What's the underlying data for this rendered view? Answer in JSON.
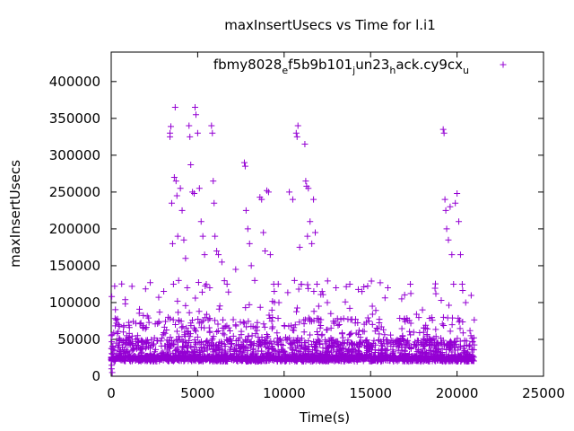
{
  "chart_data": {
    "type": "scatter",
    "title": "maxInsertUsecs vs Time for l.i1",
    "xlabel": "Time(s)",
    "ylabel": "maxInsertUsecs",
    "xlim": [
      0,
      25000
    ],
    "ylim": [
      0,
      440000
    ],
    "xticks": [
      0,
      5000,
      10000,
      15000,
      20000,
      25000
    ],
    "yticks": [
      0,
      50000,
      100000,
      150000,
      200000,
      250000,
      300000,
      350000,
      400000
    ],
    "grid": false,
    "legend_position": "top-right",
    "marker": "plus",
    "series": [
      {
        "name": "fbmy8028_ef5b9b101_jun23_hack.cy9cx_u",
        "name_segments": [
          {
            "text": "fbmy8028",
            "sub": false
          },
          {
            "text": "e",
            "sub": true
          },
          {
            "text": "f5b9b101",
            "sub": false
          },
          {
            "text": "j",
            "sub": true
          },
          {
            "text": "un23",
            "sub": false
          },
          {
            "text": "h",
            "sub": true
          },
          {
            "text": "ack.cy9cx",
            "sub": false
          },
          {
            "text": "u",
            "sub": true
          }
        ],
        "color": "#9400d3",
        "points": [
          [
            20,
            10000
          ],
          [
            30,
            15000
          ],
          [
            50,
            22000
          ],
          [
            60,
            5000
          ],
          [
            80,
            30000
          ],
          [
            100,
            40000
          ],
          [
            150,
            25000
          ],
          [
            200,
            35000
          ],
          [
            300,
            45000
          ],
          [
            500,
            50000
          ],
          [
            700,
            60000
          ],
          [
            900,
            55000
          ],
          [
            1200,
            122000
          ],
          [
            1500,
            42000
          ],
          [
            2000,
            38000
          ],
          [
            2500,
            52000
          ],
          [
            2800,
            87000
          ],
          [
            3400,
            330000
          ],
          [
            3400,
            325000
          ],
          [
            3450,
            339000
          ],
          [
            3500,
            235000
          ],
          [
            3550,
            180000
          ],
          [
            3600,
            125000
          ],
          [
            3650,
            270000
          ],
          [
            3700,
            365000
          ],
          [
            3750,
            265000
          ],
          [
            3800,
            245000
          ],
          [
            3850,
            190000
          ],
          [
            3900,
            130000
          ],
          [
            4000,
            255000
          ],
          [
            4100,
            225000
          ],
          [
            4200,
            185000
          ],
          [
            4300,
            160000
          ],
          [
            4400,
            120000
          ],
          [
            4500,
            340000
          ],
          [
            4550,
            325000
          ],
          [
            4600,
            287000
          ],
          [
            4700,
            250000
          ],
          [
            4800,
            248000
          ],
          [
            4850,
            365000
          ],
          [
            4900,
            355000
          ],
          [
            5000,
            330000
          ],
          [
            5100,
            255000
          ],
          [
            5200,
            210000
          ],
          [
            5300,
            190000
          ],
          [
            5400,
            165000
          ],
          [
            5500,
            125000
          ],
          [
            5700,
            120000
          ],
          [
            5800,
            340000
          ],
          [
            5850,
            330000
          ],
          [
            5900,
            265000
          ],
          [
            5950,
            235000
          ],
          [
            6000,
            190000
          ],
          [
            6100,
            170000
          ],
          [
            6200,
            165000
          ],
          [
            6400,
            155000
          ],
          [
            6700,
            125000
          ],
          [
            7200,
            145000
          ],
          [
            7700,
            290000
          ],
          [
            7750,
            285000
          ],
          [
            7800,
            225000
          ],
          [
            7900,
            200000
          ],
          [
            8000,
            180000
          ],
          [
            8100,
            150000
          ],
          [
            8300,
            130000
          ],
          [
            8600,
            243000
          ],
          [
            8700,
            240000
          ],
          [
            8800,
            195000
          ],
          [
            8900,
            170000
          ],
          [
            9000,
            252000
          ],
          [
            9100,
            250000
          ],
          [
            9200,
            165000
          ],
          [
            9400,
            125000
          ],
          [
            9700,
            100000
          ],
          [
            10300,
            250000
          ],
          [
            10500,
            240000
          ],
          [
            10600,
            130000
          ],
          [
            10700,
            330000
          ],
          [
            10750,
            325000
          ],
          [
            10800,
            340000
          ],
          [
            10900,
            175000
          ],
          [
            11000,
            125000
          ],
          [
            11200,
            315000
          ],
          [
            11250,
            265000
          ],
          [
            11300,
            258000
          ],
          [
            11350,
            190000
          ],
          [
            11400,
            255000
          ],
          [
            11500,
            210000
          ],
          [
            11600,
            180000
          ],
          [
            11700,
            240000
          ],
          [
            11800,
            195000
          ],
          [
            11900,
            125000
          ],
          [
            12000,
            95000
          ],
          [
            12200,
            115000
          ],
          [
            12500,
            100000
          ],
          [
            12700,
            85000
          ],
          [
            13000,
            120000
          ],
          [
            13800,
            125000
          ],
          [
            14500,
            115000
          ],
          [
            15100,
            95000
          ],
          [
            16000,
            120000
          ],
          [
            16800,
            105000
          ],
          [
            17300,
            125000
          ],
          [
            18000,
            90000
          ],
          [
            19200,
            335000
          ],
          [
            19250,
            330000
          ],
          [
            19300,
            240000
          ],
          [
            19350,
            225000
          ],
          [
            19400,
            200000
          ],
          [
            19500,
            185000
          ],
          [
            19600,
            230000
          ],
          [
            19700,
            165000
          ],
          [
            19800,
            125000
          ],
          [
            19900,
            235000
          ],
          [
            20000,
            248000
          ],
          [
            20100,
            210000
          ],
          [
            20200,
            165000
          ],
          [
            20300,
            125000
          ],
          [
            20500,
            100000
          ],
          [
            20800,
            55000
          ]
        ]
      }
    ]
  }
}
